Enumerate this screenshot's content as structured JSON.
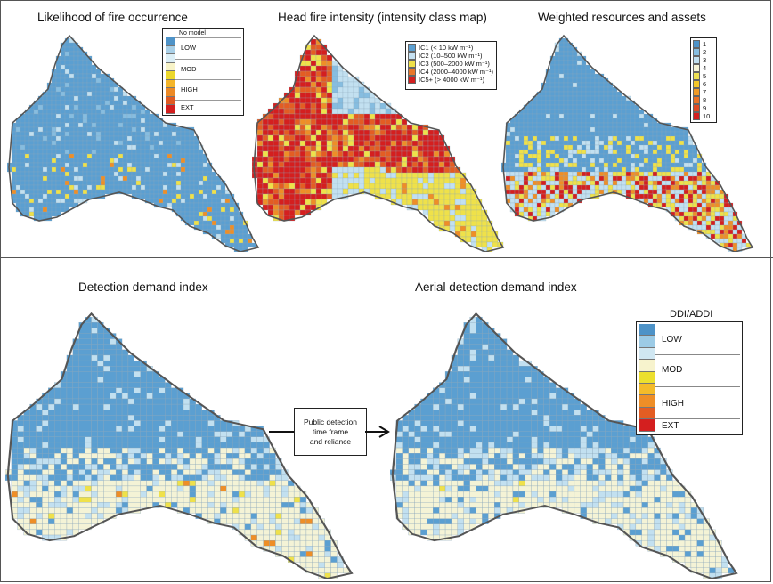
{
  "titles": {
    "likelihood": "Likelihood of fire occurrence",
    "intensity": "Head fire intensity (intensity class map)",
    "weighted": "Weighted resources and assets",
    "ddi": "Detection demand index",
    "addi": "Aerial detection demand index"
  },
  "legend_likelihood": {
    "header": "No model",
    "labels": [
      "LOW",
      "MOD",
      "HIGH",
      "EXT"
    ],
    "colors": [
      "#4e93c8",
      "#a9d0e8",
      "#dbeef6",
      "#f7f3c8",
      "#ecd82c",
      "#f4b52a",
      "#ec8a26",
      "#e05a22",
      "#d21e1e"
    ]
  },
  "legend_intensity": {
    "items": [
      {
        "label": "IC1 (< 10 kW m⁻¹)",
        "color": "#5b9fd1"
      },
      {
        "label": "IC2 (10–500 kW m⁻¹)",
        "color": "#c5e1f2"
      },
      {
        "label": "IC3 (500–2000 kW m⁻¹)",
        "color": "#efe14a"
      },
      {
        "label": "IC4 (2000–4000 kW m⁻¹)",
        "color": "#e8762a"
      },
      {
        "label": "IC5+ (> 4000 kW m⁻¹)",
        "color": "#d41f1f"
      }
    ]
  },
  "legend_weighted": {
    "items": [
      {
        "label": "1",
        "color": "#4e93c8"
      },
      {
        "label": "2",
        "color": "#86bde0"
      },
      {
        "label": "3",
        "color": "#c2e0f0"
      },
      {
        "label": "4",
        "color": "#f8f5d8"
      },
      {
        "label": "5",
        "color": "#f0e255"
      },
      {
        "label": "6",
        "color": "#f5c72a"
      },
      {
        "label": "7",
        "color": "#f09b27"
      },
      {
        "label": "8",
        "color": "#ea7124"
      },
      {
        "label": "9",
        "color": "#e04a22"
      },
      {
        "label": "10",
        "color": "#d41f1f"
      }
    ]
  },
  "legend_ddi": {
    "title": "DDI/ADDI",
    "labels": [
      "LOW",
      "MOD",
      "HIGH",
      "EXT"
    ],
    "colors": [
      "#4e93c8",
      "#9ccbe6",
      "#d0e7f2",
      "#f7f3cd",
      "#ecdf2e",
      "#f4bb2a",
      "#ee8e27",
      "#e35d23",
      "#d41f1f"
    ]
  },
  "arrow_box": {
    "lines": [
      "Public detection",
      "time frame",
      "and reliance"
    ]
  }
}
